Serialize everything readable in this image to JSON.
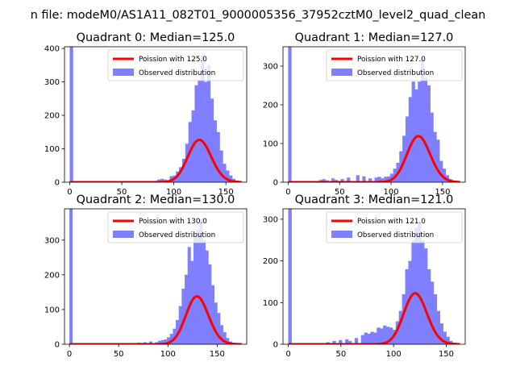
{
  "figure": {
    "suptitle": "n file: modeM0/AS1A11_082T01_9000005356_37952cztM0_level2_quad_clean"
  },
  "colors": {
    "observed": "#7f7fff",
    "poisson": "#ff0000",
    "axes": "#000000"
  },
  "chart_data": [
    {
      "type": "bar",
      "title": "Quadrant 0: Median=125.0",
      "xlim": [
        -5,
        170
      ],
      "ylim": [
        0,
        405
      ],
      "xticks": [
        0,
        50,
        100,
        150
      ],
      "yticks": [
        0,
        100,
        200,
        300,
        400
      ],
      "legend": {
        "placement": "top-right",
        "entries": [
          "Poission with 125.0",
          "Observed distribution"
        ]
      },
      "poisson_mean": 125.0,
      "poisson_label": "Poission with 125.0",
      "observed_label": "Observed distribution",
      "histogram": {
        "bin_width": 3.3,
        "edges_start": 0,
        "spike_value": 410,
        "bins": [
          [
            0,
            410
          ],
          [
            81,
            4
          ],
          [
            84,
            8
          ],
          [
            87,
            10
          ],
          [
            90,
            8
          ],
          [
            93,
            6
          ],
          [
            96,
            18
          ],
          [
            99,
            20
          ],
          [
            102,
            32
          ],
          [
            105,
            45
          ],
          [
            108,
            70
          ],
          [
            111,
            115
          ],
          [
            114,
            180
          ],
          [
            117,
            215
          ],
          [
            120,
            290
          ],
          [
            123,
            305
          ],
          [
            126,
            380
          ],
          [
            129,
            300
          ],
          [
            132,
            350
          ],
          [
            135,
            250
          ],
          [
            138,
            185
          ],
          [
            141,
            150
          ],
          [
            144,
            95
          ],
          [
            147,
            55
          ],
          [
            150,
            35
          ],
          [
            153,
            20
          ],
          [
            156,
            10
          ],
          [
            159,
            5
          ],
          [
            162,
            3
          ]
        ]
      }
    },
    {
      "type": "bar",
      "title": "Quadrant 1: Median=127.0",
      "xlim": [
        -5,
        172
      ],
      "ylim": [
        0,
        350
      ],
      "xticks": [
        0,
        50,
        100,
        150
      ],
      "yticks": [
        0,
        100,
        200,
        300
      ],
      "legend": {
        "placement": "top-right",
        "entries": [
          "Poission with 127.0",
          "Observed distribution"
        ]
      },
      "poisson_mean": 127.0,
      "poisson_label": "Poission with 127.0",
      "observed_label": "Observed distribution",
      "histogram": {
        "bin_width": 3.3,
        "spike_value": 355,
        "bins": [
          [
            0,
            355
          ],
          [
            30,
            6
          ],
          [
            33,
            8
          ],
          [
            36,
            5
          ],
          [
            42,
            10
          ],
          [
            45,
            6
          ],
          [
            51,
            8
          ],
          [
            57,
            12
          ],
          [
            66,
            18
          ],
          [
            72,
            15
          ],
          [
            78,
            10
          ],
          [
            84,
            12
          ],
          [
            87,
            14
          ],
          [
            90,
            10
          ],
          [
            93,
            14
          ],
          [
            96,
            15
          ],
          [
            99,
            22
          ],
          [
            102,
            35
          ],
          [
            105,
            50
          ],
          [
            108,
            80
          ],
          [
            111,
            120
          ],
          [
            114,
            170
          ],
          [
            117,
            220
          ],
          [
            120,
            260
          ],
          [
            123,
            240
          ],
          [
            126,
            260
          ],
          [
            129,
            320
          ],
          [
            132,
            270
          ],
          [
            135,
            250
          ],
          [
            138,
            180
          ],
          [
            141,
            130
          ],
          [
            144,
            110
          ],
          [
            147,
            55
          ],
          [
            150,
            35
          ],
          [
            153,
            18
          ],
          [
            156,
            8
          ],
          [
            159,
            4
          ]
        ]
      }
    },
    {
      "type": "bar",
      "title": "Quadrant 2: Median=130.0",
      "xlim": [
        -5,
        180
      ],
      "ylim": [
        0,
        390
      ],
      "xticks": [
        0,
        50,
        100,
        150
      ],
      "yticks": [
        0,
        100,
        200,
        300
      ],
      "legend": {
        "placement": "top-right",
        "entries": [
          "Poission with 130.0",
          "Observed distribution"
        ]
      },
      "poisson_mean": 130.0,
      "poisson_label": "Poission with 130.0",
      "observed_label": "Observed distribution",
      "histogram": {
        "bin_width": 3.3,
        "spike_value": 395,
        "bins": [
          [
            0,
            395
          ],
          [
            69,
            5
          ],
          [
            75,
            6
          ],
          [
            81,
            8
          ],
          [
            87,
            6
          ],
          [
            90,
            10
          ],
          [
            93,
            12
          ],
          [
            96,
            14
          ],
          [
            99,
            20
          ],
          [
            102,
            30
          ],
          [
            105,
            45
          ],
          [
            108,
            70
          ],
          [
            111,
            110
          ],
          [
            114,
            160
          ],
          [
            117,
            200
          ],
          [
            120,
            280
          ],
          [
            123,
            240
          ],
          [
            126,
            310
          ],
          [
            129,
            330
          ],
          [
            132,
            360
          ],
          [
            135,
            300
          ],
          [
            138,
            270
          ],
          [
            141,
            230
          ],
          [
            144,
            170
          ],
          [
            147,
            120
          ],
          [
            150,
            90
          ],
          [
            153,
            55
          ],
          [
            156,
            35
          ],
          [
            159,
            18
          ],
          [
            162,
            8
          ],
          [
            165,
            4
          ]
        ]
      }
    },
    {
      "type": "bar",
      "title": "Quadrant 3: Median=121.0",
      "xlim": [
        -5,
        168
      ],
      "ylim": [
        0,
        325
      ],
      "xticks": [
        0,
        50,
        100,
        150
      ],
      "yticks": [
        0,
        100,
        200,
        300
      ],
      "legend": {
        "placement": "top-right",
        "entries": [
          "Poission with 121.0",
          "Observed distribution"
        ]
      },
      "poisson_mean": 121.0,
      "poisson_label": "Poission with 121.0",
      "observed_label": "Observed distribution",
      "histogram": {
        "bin_width": 3.3,
        "spike_value": 330,
        "bins": [
          [
            0,
            330
          ],
          [
            36,
            5
          ],
          [
            42,
            8
          ],
          [
            48,
            10
          ],
          [
            54,
            12
          ],
          [
            57,
            8
          ],
          [
            63,
            15
          ],
          [
            69,
            22
          ],
          [
            72,
            28
          ],
          [
            75,
            25
          ],
          [
            78,
            30
          ],
          [
            81,
            28
          ],
          [
            84,
            40
          ],
          [
            87,
            38
          ],
          [
            90,
            45
          ],
          [
            93,
            42
          ],
          [
            96,
            40
          ],
          [
            99,
            35
          ],
          [
            102,
            55
          ],
          [
            105,
            80
          ],
          [
            108,
            120
          ],
          [
            111,
            180
          ],
          [
            114,
            200
          ],
          [
            117,
            250
          ],
          [
            120,
            280
          ],
          [
            123,
            290
          ],
          [
            126,
            250
          ],
          [
            129,
            230
          ],
          [
            132,
            180
          ],
          [
            135,
            150
          ],
          [
            138,
            120
          ],
          [
            141,
            80
          ],
          [
            144,
            50
          ],
          [
            147,
            30
          ],
          [
            150,
            18
          ],
          [
            153,
            8
          ],
          [
            156,
            4
          ]
        ]
      }
    }
  ]
}
